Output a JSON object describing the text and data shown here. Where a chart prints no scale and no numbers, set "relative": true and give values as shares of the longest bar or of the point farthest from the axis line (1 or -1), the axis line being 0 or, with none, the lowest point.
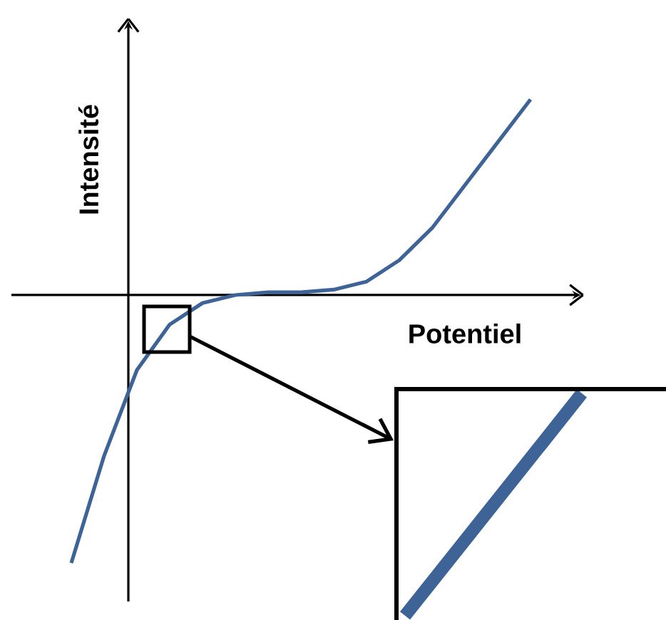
{
  "chart_data": {
    "type": "line",
    "xlabel": "Potentiel",
    "ylabel": "Intensité",
    "relative": true,
    "categories": [
      null,
      null,
      null,
      null,
      null,
      null,
      null,
      null,
      null,
      null,
      null,
      null,
      null,
      null,
      null
    ],
    "series": [
      {
        "color": "#3e6497",
        "values": [
          -1,
          -0.6,
          -0.28,
          -0.11,
          -0.03,
          0,
          0.01,
          0.01,
          0.02,
          0.05,
          0.13,
          0.25,
          0.41,
          0.57,
          0.73
        ]
      }
    ]
  }
}
